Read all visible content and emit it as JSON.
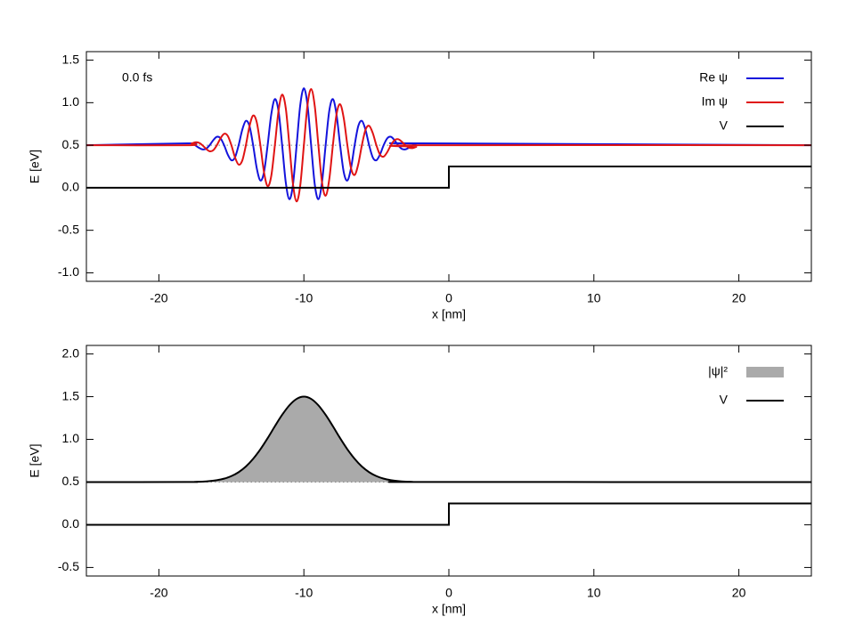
{
  "chart_data": [
    {
      "type": "line",
      "annotation": "0.0 fs",
      "xlabel": "x [nm]",
      "ylabel": "E [eV]",
      "xlim": [
        -25,
        25
      ],
      "xticks": [
        -20,
        -10,
        0,
        10,
        20
      ],
      "ylim": [
        -1.1,
        1.6
      ],
      "yticks": [
        {
          "value": -1,
          "label": "-1.0"
        },
        -0.5,
        {
          "value": 0,
          "label": "0.0"
        },
        0.5,
        {
          "value": 1,
          "label": "1.0"
        },
        1.5
      ],
      "energy_level": 0.5,
      "legend": "upper right",
      "series": [
        {
          "name": "Re ψ",
          "color": "#1414dc",
          "smooth": true,
          "x": [
            -25,
            -18,
            -17.75,
            -17.5,
            -17.25,
            -17,
            -16.75,
            -16.5,
            -16.25,
            -16,
            -15.75,
            -15.5,
            -15.25,
            -15,
            -14.75,
            -14.5,
            -14.25,
            -14,
            -13.75,
            -13.5,
            -13.25,
            -13,
            -12.75,
            -12.5,
            -12.25,
            -12,
            -11.75,
            -11.5,
            -11.25,
            -11,
            -10.75,
            -10.5,
            -10.25,
            -10,
            -9.75,
            -9.5,
            -9.25,
            -9,
            -8.75,
            -8.5,
            -8.25,
            -8,
            -7.75,
            -7.5,
            -7.25,
            -7,
            -6.75,
            -6.5,
            -6.25,
            -6,
            -5.75,
            -5.5,
            -5.25,
            -5,
            -4.75,
            -4.5,
            -4.25,
            -4,
            -3.75,
            -3.5,
            -3.25,
            -3,
            -2.75,
            -2.5,
            -2.25,
            -2,
            25
          ],
          "values": [
            0.5,
            0.522,
            0.519,
            0.5,
            0.471,
            0.451,
            0.458,
            0.5,
            0.559,
            0.599,
            0.581,
            0.5,
            0.39,
            0.323,
            0.357,
            0.5,
            0.681,
            0.786,
            0.724,
            0.5,
            0.23,
            0.085,
            0.183,
            0.5,
            0.862,
            1.042,
            0.902,
            0.5,
            0.064,
            -0.135,
            0.04,
            0.5,
            0.972,
            1.17,
            0.972,
            0.5,
            0.04,
            -0.135,
            0.064,
            0.5,
            0.902,
            1.042,
            0.862,
            0.5,
            0.183,
            0.085,
            0.23,
            0.5,
            0.724,
            0.786,
            0.681,
            0.5,
            0.357,
            0.323,
            0.39,
            0.5,
            0.581,
            0.599,
            0.559,
            0.5,
            0.458,
            0.451,
            0.471,
            0.5,
            0.519,
            0.522,
            0.5
          ]
        },
        {
          "name": "Im ψ",
          "color": "#e01414",
          "smooth": true,
          "x": [
            -25,
            -18,
            -17.75,
            -17.5,
            -17.25,
            -17,
            -16.75,
            -16.5,
            -16.25,
            -16,
            -15.75,
            -15.5,
            -15.25,
            -15,
            -14.75,
            -14.5,
            -14.25,
            -14,
            -13.75,
            -13.5,
            -13.25,
            -13,
            -12.75,
            -12.5,
            -12.25,
            -12,
            -11.75,
            -11.5,
            -11.25,
            -11,
            -10.75,
            -10.5,
            -10.25,
            -10,
            -9.75,
            -9.5,
            -9.25,
            -9,
            -8.75,
            -8.5,
            -8.25,
            -8,
            -7.75,
            -7.5,
            -7.25,
            -7,
            -6.75,
            -6.5,
            -6.25,
            -6,
            -5.75,
            -5.5,
            -5.25,
            -5,
            -4.75,
            -4.5,
            -4.25,
            -4,
            -3.75,
            -3.5,
            -3.25,
            -3,
            -2.75,
            -2.5,
            -2.25,
            -2,
            25
          ],
          "values": [
            0.5,
            0.5,
            0.519,
            0.534,
            0.529,
            0.5,
            0.458,
            0.429,
            0.441,
            0.5,
            0.581,
            0.634,
            0.61,
            0.5,
            0.357,
            0.272,
            0.319,
            0.5,
            0.724,
            0.849,
            0.77,
            0.5,
            0.183,
            0.019,
            0.138,
            0.5,
            0.902,
            1.094,
            0.936,
            0.5,
            0.04,
            -0.161,
            0.028,
            0.5,
            0.972,
            1.161,
            0.96,
            0.5,
            0.064,
            -0.094,
            0.098,
            0.5,
            0.862,
            0.981,
            0.817,
            0.5,
            0.23,
            0.151,
            0.276,
            0.5,
            0.681,
            0.728,
            0.643,
            0.5,
            0.39,
            0.366,
            0.419,
            0.5,
            0.559,
            0.571,
            0.542,
            0.5,
            0.471,
            0.466,
            0.481,
            0.5,
            0.5
          ]
        },
        {
          "name": "V",
          "color": "#000000",
          "x": [
            -25,
            0,
            0,
            25
          ],
          "values": [
            0,
            0,
            0.25,
            0.25
          ]
        }
      ]
    },
    {
      "type": "area",
      "xlabel": "x [nm]",
      "ylabel": "E [eV]",
      "xlim": [
        -25,
        25
      ],
      "xticks": [
        -20,
        -10,
        0,
        10,
        20
      ],
      "ylim": [
        -0.6,
        2.1
      ],
      "yticks": [
        -0.5,
        {
          "value": 0,
          "label": "0.0"
        },
        0.5,
        {
          "value": 1,
          "label": "1.0"
        },
        1.5,
        {
          "value": 2,
          "label": "2.0"
        }
      ],
      "energy_level": 0.5,
      "legend": "upper right",
      "series": [
        {
          "name": "|ψ|²",
          "color": "#000000",
          "fill": "#aaaaaa",
          "smooth": true,
          "x": [
            -25,
            -18,
            -17.5,
            -17,
            -16.5,
            -16,
            -15.5,
            -15,
            -14.5,
            -14,
            -13.5,
            -13,
            -12.5,
            -12,
            -11.5,
            -11,
            -10.5,
            -10,
            -9.5,
            -9,
            -8.5,
            -8,
            -7.5,
            -7,
            -6.5,
            -6,
            -5.5,
            -5,
            -4.5,
            -4,
            -3.5,
            -3,
            -2.5,
            -2,
            25
          ],
          "values": [
            0.5,
            0.501,
            0.503,
            0.505,
            0.511,
            0.522,
            0.54,
            0.57,
            0.616,
            0.682,
            0.772,
            0.884,
            1.014,
            1.154,
            1.287,
            1.399,
            1.474,
            1.5,
            1.474,
            1.399,
            1.287,
            1.154,
            1.014,
            0.884,
            0.772,
            0.682,
            0.616,
            0.57,
            0.54,
            0.522,
            0.511,
            0.505,
            0.503,
            0.501,
            0.5
          ]
        },
        {
          "name": "V",
          "color": "#000000",
          "x": [
            -25,
            0,
            0,
            25
          ],
          "values": [
            0,
            0,
            0.25,
            0.25
          ]
        }
      ]
    }
  ]
}
